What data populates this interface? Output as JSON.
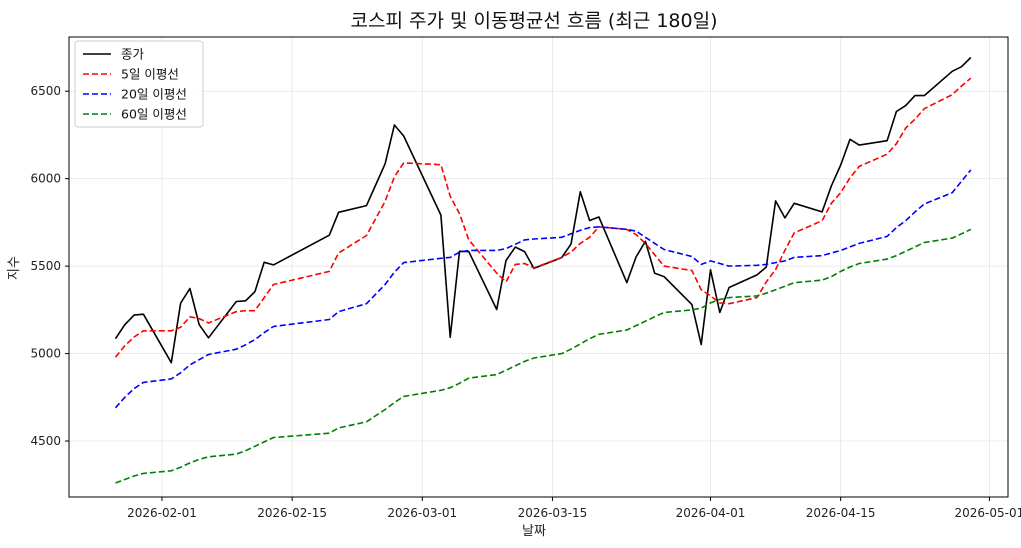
{
  "chart_data": {
    "type": "line",
    "title": "코스피 주가 및 이동평균선 흐름 (최근 180일)",
    "xlabel": "날짜",
    "ylabel": "지수",
    "xlim": [
      "2026-01-22",
      "2026-05-03"
    ],
    "ylim": [
      4180,
      6810
    ],
    "x_ticks": [
      "2026-02-01",
      "2026-02-15",
      "2026-03-01",
      "2026-03-15",
      "2026-04-01",
      "2026-04-15",
      "2026-05-01"
    ],
    "y_ticks": [
      4500,
      5000,
      5500,
      6000,
      6500
    ],
    "grid": true,
    "legend_position": "top-left",
    "series": [
      {
        "name": "종가",
        "color": "#000000",
        "dash": "solid",
        "points": [
          [
            "2026-01-27",
            5085
          ],
          [
            "2026-01-28",
            5165
          ],
          [
            "2026-01-29",
            5220
          ],
          [
            "2026-01-30",
            5225
          ],
          [
            "2026-02-02",
            4948
          ],
          [
            "2026-02-03",
            5288
          ],
          [
            "2026-02-04",
            5372
          ],
          [
            "2026-02-05",
            5165
          ],
          [
            "2026-02-06",
            5090
          ],
          [
            "2026-02-09",
            5298
          ],
          [
            "2026-02-10",
            5302
          ],
          [
            "2026-02-11",
            5354
          ],
          [
            "2026-02-12",
            5522
          ],
          [
            "2026-02-13",
            5507
          ],
          [
            "2026-02-19",
            5677
          ],
          [
            "2026-02-20",
            5808
          ],
          [
            "2026-02-23",
            5846
          ],
          [
            "2026-02-25",
            6085
          ],
          [
            "2026-02-26",
            6307
          ],
          [
            "2026-02-27",
            6244
          ],
          [
            "2026-03-03",
            5792
          ],
          [
            "2026-03-04",
            5093
          ],
          [
            "2026-03-05",
            5585
          ],
          [
            "2026-03-06",
            5583
          ],
          [
            "2026-03-09",
            5252
          ],
          [
            "2026-03-10",
            5532
          ],
          [
            "2026-03-11",
            5609
          ],
          [
            "2026-03-12",
            5583
          ],
          [
            "2026-03-13",
            5487
          ],
          [
            "2026-03-16",
            5549
          ],
          [
            "2026-03-17",
            5626
          ],
          [
            "2026-03-18",
            5925
          ],
          [
            "2026-03-19",
            5761
          ],
          [
            "2026-03-20",
            5781
          ],
          [
            "2026-03-23",
            5406
          ],
          [
            "2026-03-24",
            5553
          ],
          [
            "2026-03-25",
            5642
          ],
          [
            "2026-03-26",
            5459
          ],
          [
            "2026-03-27",
            5440
          ],
          [
            "2026-03-30",
            5280
          ],
          [
            "2026-03-31",
            5052
          ],
          [
            "2026-04-01",
            5479
          ],
          [
            "2026-04-02",
            5235
          ],
          [
            "2026-04-03",
            5378
          ],
          [
            "2026-04-06",
            5450
          ],
          [
            "2026-04-07",
            5495
          ],
          [
            "2026-04-08",
            5873
          ],
          [
            "2026-04-09",
            5776
          ],
          [
            "2026-04-10",
            5859
          ],
          [
            "2026-04-13",
            5810
          ],
          [
            "2026-04-14",
            5959
          ],
          [
            "2026-04-15",
            6078
          ],
          [
            "2026-04-16",
            6225
          ],
          [
            "2026-04-17",
            6192
          ],
          [
            "2026-04-20",
            6217
          ],
          [
            "2026-04-21",
            6384
          ],
          [
            "2026-04-22",
            6418
          ],
          [
            "2026-04-23",
            6475
          ],
          [
            "2026-04-24",
            6475
          ],
          [
            "2026-04-27",
            6614
          ],
          [
            "2026-04-28",
            6640
          ],
          [
            "2026-04-29",
            6693
          ]
        ]
      },
      {
        "name": "5일 이평선",
        "color": "#ff0000",
        "dash": "dashed",
        "points": [
          [
            "2026-01-27",
            4980
          ],
          [
            "2026-01-28",
            5045
          ],
          [
            "2026-01-29",
            5095
          ],
          [
            "2026-01-30",
            5130
          ],
          [
            "2026-02-02",
            5130
          ],
          [
            "2026-02-03",
            5150
          ],
          [
            "2026-02-04",
            5210
          ],
          [
            "2026-02-05",
            5200
          ],
          [
            "2026-02-06",
            5175
          ],
          [
            "2026-02-09",
            5240
          ],
          [
            "2026-02-10",
            5245
          ],
          [
            "2026-02-11",
            5245
          ],
          [
            "2026-02-12",
            5320
          ],
          [
            "2026-02-13",
            5395
          ],
          [
            "2026-02-19",
            5470
          ],
          [
            "2026-02-20",
            5575
          ],
          [
            "2026-02-23",
            5675
          ],
          [
            "2026-02-25",
            5870
          ],
          [
            "2026-02-26",
            6010
          ],
          [
            "2026-02-27",
            6090
          ],
          [
            "2026-03-03",
            6080
          ],
          [
            "2026-03-04",
            5900
          ],
          [
            "2026-03-05",
            5800
          ],
          [
            "2026-03-06",
            5650
          ],
          [
            "2026-03-09",
            5460
          ],
          [
            "2026-03-10",
            5410
          ],
          [
            "2026-03-11",
            5510
          ],
          [
            "2026-03-12",
            5515
          ],
          [
            "2026-03-13",
            5490
          ],
          [
            "2026-03-16",
            5550
          ],
          [
            "2026-03-17",
            5580
          ],
          [
            "2026-03-18",
            5630
          ],
          [
            "2026-03-19",
            5665
          ],
          [
            "2026-03-20",
            5725
          ],
          [
            "2026-03-23",
            5710
          ],
          [
            "2026-03-24",
            5680
          ],
          [
            "2026-03-25",
            5630
          ],
          [
            "2026-03-26",
            5565
          ],
          [
            "2026-03-27",
            5500
          ],
          [
            "2026-03-30",
            5475
          ],
          [
            "2026-03-31",
            5365
          ],
          [
            "2026-04-01",
            5330
          ],
          [
            "2026-04-02",
            5290
          ],
          [
            "2026-04-03",
            5285
          ],
          [
            "2026-04-06",
            5320
          ],
          [
            "2026-04-07",
            5410
          ],
          [
            "2026-04-08",
            5480
          ],
          [
            "2026-04-09",
            5590
          ],
          [
            "2026-04-10",
            5690
          ],
          [
            "2026-04-13",
            5760
          ],
          [
            "2026-04-14",
            5860
          ],
          [
            "2026-04-15",
            5920
          ],
          [
            "2026-04-16",
            6005
          ],
          [
            "2026-04-17",
            6070
          ],
          [
            "2026-04-20",
            6140
          ],
          [
            "2026-04-21",
            6200
          ],
          [
            "2026-04-22",
            6290
          ],
          [
            "2026-04-23",
            6340
          ],
          [
            "2026-04-24",
            6400
          ],
          [
            "2026-04-27",
            6480
          ],
          [
            "2026-04-28",
            6530
          ],
          [
            "2026-04-29",
            6575
          ]
        ]
      },
      {
        "name": "20일 이평선",
        "color": "#0000ff",
        "dash": "dashed",
        "points": [
          [
            "2026-01-27",
            4690
          ],
          [
            "2026-01-28",
            4750
          ],
          [
            "2026-01-29",
            4800
          ],
          [
            "2026-01-30",
            4835
          ],
          [
            "2026-02-02",
            4855
          ],
          [
            "2026-02-03",
            4890
          ],
          [
            "2026-02-04",
            4935
          ],
          [
            "2026-02-05",
            4965
          ],
          [
            "2026-02-06",
            4995
          ],
          [
            "2026-02-09",
            5025
          ],
          [
            "2026-02-10",
            5050
          ],
          [
            "2026-02-11",
            5080
          ],
          [
            "2026-02-12",
            5120
          ],
          [
            "2026-02-13",
            5155
          ],
          [
            "2026-02-19",
            5195
          ],
          [
            "2026-02-20",
            5240
          ],
          [
            "2026-02-23",
            5285
          ],
          [
            "2026-02-25",
            5395
          ],
          [
            "2026-02-26",
            5465
          ],
          [
            "2026-02-27",
            5520
          ],
          [
            "2026-03-03",
            5545
          ],
          [
            "2026-03-04",
            5550
          ],
          [
            "2026-03-05",
            5580
          ],
          [
            "2026-03-06",
            5590
          ],
          [
            "2026-03-09",
            5590
          ],
          [
            "2026-03-10",
            5600
          ],
          [
            "2026-03-11",
            5625
          ],
          [
            "2026-03-12",
            5650
          ],
          [
            "2026-03-13",
            5655
          ],
          [
            "2026-03-16",
            5665
          ],
          [
            "2026-03-17",
            5685
          ],
          [
            "2026-03-18",
            5705
          ],
          [
            "2026-03-19",
            5720
          ],
          [
            "2026-03-20",
            5725
          ],
          [
            "2026-03-23",
            5710
          ],
          [
            "2026-03-24",
            5700
          ],
          [
            "2026-03-25",
            5665
          ],
          [
            "2026-03-26",
            5630
          ],
          [
            "2026-03-27",
            5595
          ],
          [
            "2026-03-30",
            5555
          ],
          [
            "2026-03-31",
            5510
          ],
          [
            "2026-04-01",
            5530
          ],
          [
            "2026-04-02",
            5515
          ],
          [
            "2026-04-03",
            5500
          ],
          [
            "2026-04-06",
            5505
          ],
          [
            "2026-04-07",
            5510
          ],
          [
            "2026-04-08",
            5520
          ],
          [
            "2026-04-09",
            5530
          ],
          [
            "2026-04-10",
            5550
          ],
          [
            "2026-04-13",
            5560
          ],
          [
            "2026-04-14",
            5575
          ],
          [
            "2026-04-15",
            5590
          ],
          [
            "2026-04-16",
            5610
          ],
          [
            "2026-04-17",
            5630
          ],
          [
            "2026-04-20",
            5670
          ],
          [
            "2026-04-21",
            5720
          ],
          [
            "2026-04-22",
            5760
          ],
          [
            "2026-04-23",
            5810
          ],
          [
            "2026-04-24",
            5855
          ],
          [
            "2026-04-27",
            5920
          ],
          [
            "2026-04-28",
            5985
          ],
          [
            "2026-04-29",
            6050
          ]
        ]
      },
      {
        "name": "60일 이평선",
        "color": "#008000",
        "dash": "dashed",
        "points": [
          [
            "2026-01-27",
            4260
          ],
          [
            "2026-01-28",
            4280
          ],
          [
            "2026-01-29",
            4300
          ],
          [
            "2026-01-30",
            4315
          ],
          [
            "2026-02-02",
            4330
          ],
          [
            "2026-02-03",
            4350
          ],
          [
            "2026-02-04",
            4375
          ],
          [
            "2026-02-05",
            4395
          ],
          [
            "2026-02-06",
            4410
          ],
          [
            "2026-02-09",
            4425
          ],
          [
            "2026-02-10",
            4445
          ],
          [
            "2026-02-11",
            4470
          ],
          [
            "2026-02-12",
            4495
          ],
          [
            "2026-02-13",
            4520
          ],
          [
            "2026-02-19",
            4545
          ],
          [
            "2026-02-20",
            4575
          ],
          [
            "2026-02-23",
            4610
          ],
          [
            "2026-02-25",
            4680
          ],
          [
            "2026-02-26",
            4720
          ],
          [
            "2026-02-27",
            4755
          ],
          [
            "2026-03-03",
            4790
          ],
          [
            "2026-03-04",
            4805
          ],
          [
            "2026-03-05",
            4830
          ],
          [
            "2026-03-06",
            4860
          ],
          [
            "2026-03-09",
            4880
          ],
          [
            "2026-03-10",
            4905
          ],
          [
            "2026-03-11",
            4930
          ],
          [
            "2026-03-12",
            4955
          ],
          [
            "2026-03-13",
            4975
          ],
          [
            "2026-03-16",
            5000
          ],
          [
            "2026-03-17",
            5025
          ],
          [
            "2026-03-18",
            5055
          ],
          [
            "2026-03-19",
            5085
          ],
          [
            "2026-03-20",
            5110
          ],
          [
            "2026-03-23",
            5135
          ],
          [
            "2026-03-24",
            5160
          ],
          [
            "2026-03-25",
            5185
          ],
          [
            "2026-03-26",
            5210
          ],
          [
            "2026-03-27",
            5235
          ],
          [
            "2026-03-30",
            5250
          ],
          [
            "2026-03-31",
            5260
          ],
          [
            "2026-04-01",
            5290
          ],
          [
            "2026-04-02",
            5310
          ],
          [
            "2026-04-03",
            5320
          ],
          [
            "2026-04-06",
            5330
          ],
          [
            "2026-04-07",
            5345
          ],
          [
            "2026-04-08",
            5365
          ],
          [
            "2026-04-09",
            5385
          ],
          [
            "2026-04-10",
            5405
          ],
          [
            "2026-04-13",
            5420
          ],
          [
            "2026-04-14",
            5440
          ],
          [
            "2026-04-15",
            5470
          ],
          [
            "2026-04-16",
            5495
          ],
          [
            "2026-04-17",
            5515
          ],
          [
            "2026-04-20",
            5540
          ],
          [
            "2026-04-21",
            5560
          ],
          [
            "2026-04-22",
            5585
          ],
          [
            "2026-04-23",
            5610
          ],
          [
            "2026-04-24",
            5635
          ],
          [
            "2026-04-27",
            5660
          ],
          [
            "2026-04-28",
            5685
          ],
          [
            "2026-04-29",
            5710
          ]
        ]
      }
    ]
  }
}
